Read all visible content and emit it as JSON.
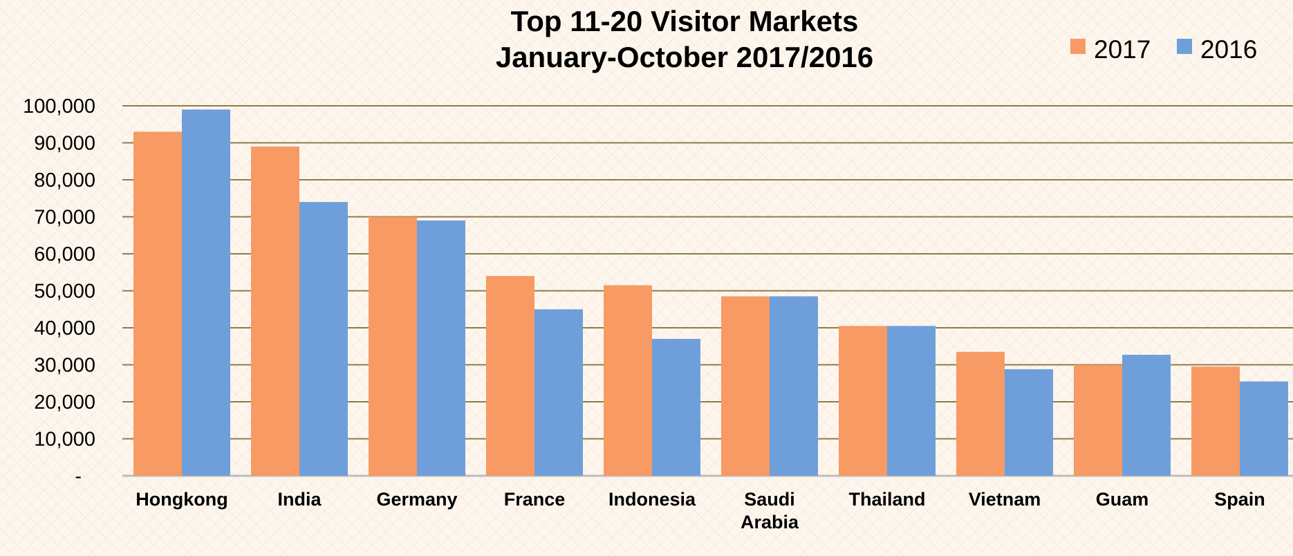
{
  "chart_data": {
    "type": "bar",
    "title": "Top 11-20 Visitor Markets",
    "subtitle": "January-October 2017/2016",
    "categories": [
      [
        "Hongkong"
      ],
      [
        "India"
      ],
      [
        "Germany"
      ],
      [
        "France"
      ],
      [
        "Indonesia"
      ],
      [
        "Saudi",
        "Arabia"
      ],
      [
        "Thailand"
      ],
      [
        "Vietnam"
      ],
      [
        "Guam"
      ],
      [
        "Spain"
      ]
    ],
    "series": [
      {
        "name": "2017",
        "color": "#f79a64",
        "values": [
          93000,
          89000,
          70000,
          54000,
          51500,
          48500,
          40500,
          33500,
          30000,
          29500
        ]
      },
      {
        "name": "2016",
        "color": "#6f9fda",
        "values": [
          99000,
          74000,
          69000,
          45000,
          37000,
          48500,
          40500,
          28800,
          32700,
          25500
        ]
      }
    ],
    "ylim": [
      0,
      100000
    ],
    "yticks": [
      "-",
      "10,000",
      "20,000",
      "30,000",
      "40,000",
      "50,000",
      "60,000",
      "70,000",
      "80,000",
      "90,000",
      "100,000"
    ],
    "grid": true,
    "gridline_color": "#8b7d4a",
    "legend_position": "top-right"
  }
}
